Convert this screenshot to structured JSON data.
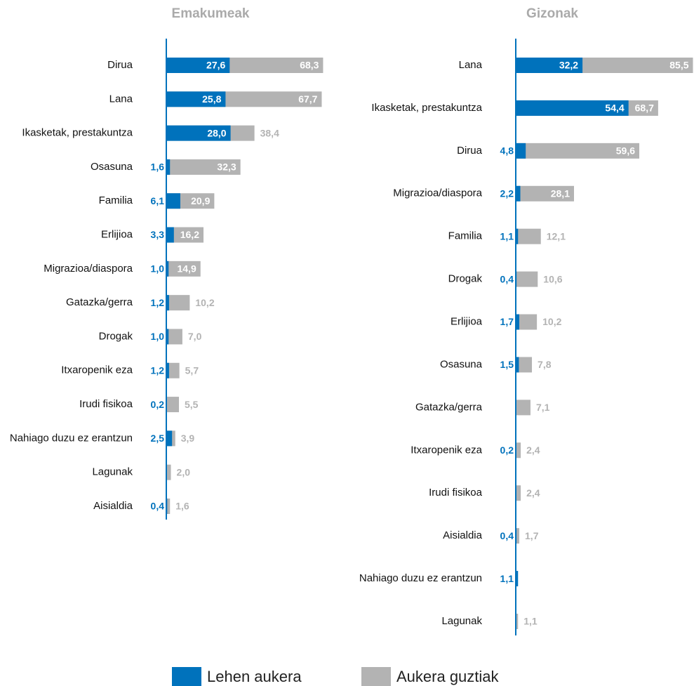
{
  "chart_data": [
    {
      "type": "bar",
      "orientation": "horizontal",
      "title": "Emakumeak",
      "categories": [
        "Dirua",
        "Lana",
        "Ikasketak, prestakuntza",
        "Osasuna",
        "Familia",
        "Erlijioa",
        "Migrazioa/diaspora",
        "Gatazka/gerra",
        "Drogak",
        "Itxaropenik eza",
        "Irudi fisikoa",
        "Nahiago duzu ez erantzun",
        "Lagunak",
        "Aisialdia"
      ],
      "xlim": [
        0,
        70
      ],
      "series": [
        {
          "name": "Lehen aukera",
          "color": "#0072bc",
          "values": [
            27.6,
            25.8,
            28.0,
            1.6,
            6.1,
            3.3,
            1.0,
            1.2,
            1.0,
            1.2,
            0.2,
            2.5,
            null,
            0.4
          ],
          "value_labels": [
            "27,6",
            "25,8",
            "28,0",
            "1,6",
            "6,1",
            "3,3",
            "1,0",
            "1,2",
            "1,0",
            "1,2",
            "0,2",
            "2,5",
            null,
            "0,4"
          ]
        },
        {
          "name": "Aukera guztiak",
          "color": "#b3b3b3",
          "values": [
            68.3,
            67.7,
            38.4,
            32.3,
            20.9,
            16.2,
            14.9,
            10.2,
            7.0,
            5.7,
            5.5,
            3.9,
            2.0,
            1.6
          ],
          "value_labels": [
            "68,3",
            "67,7",
            "38,4",
            "32,3",
            "20,9",
            "16,2",
            "14,9",
            "10,2",
            "7,0",
            "5,7",
            "5,5",
            "3,9",
            "2,0",
            "1,6"
          ]
        }
      ]
    },
    {
      "type": "bar",
      "orientation": "horizontal",
      "title": "Gizonak",
      "categories": [
        "Lana",
        "Ikasketak, prestakuntza",
        "Dirua",
        "Migrazioa/diaspora",
        "Familia",
        "Drogak",
        "Erlijioa",
        "Osasuna",
        "Gatazka/gerra",
        "Itxaropenik eza",
        "Irudi fisikoa",
        "Aisialdia",
        "Nahiago duzu ez erantzun",
        "Lagunak"
      ],
      "xlim": [
        0,
        86
      ],
      "series": [
        {
          "name": "Lehen aukera",
          "color": "#0072bc",
          "values": [
            32.2,
            54.4,
            4.8,
            2.2,
            1.1,
            0.4,
            1.7,
            1.5,
            null,
            0.2,
            null,
            0.4,
            1.1,
            null
          ],
          "value_labels": [
            "32,2",
            "54,4",
            "4,8",
            "2,2",
            "1,1",
            "0,4",
            "1,7",
            "1,5",
            null,
            "0,2",
            null,
            "0,4",
            "1,1",
            null
          ]
        },
        {
          "name": "Aukera guztiak",
          "color": "#b3b3b3",
          "values": [
            85.5,
            68.7,
            59.6,
            28.1,
            12.1,
            10.6,
            10.2,
            7.8,
            7.1,
            2.4,
            2.4,
            1.7,
            null,
            1.1
          ],
          "value_labels": [
            "85,5",
            "68,7",
            "59,6",
            "28,1",
            "12,1",
            "10,6",
            "10,2",
            "7,8",
            "7,1",
            "2,4",
            "2,4",
            "1,7",
            null,
            "1,1"
          ]
        }
      ]
    }
  ]
}
